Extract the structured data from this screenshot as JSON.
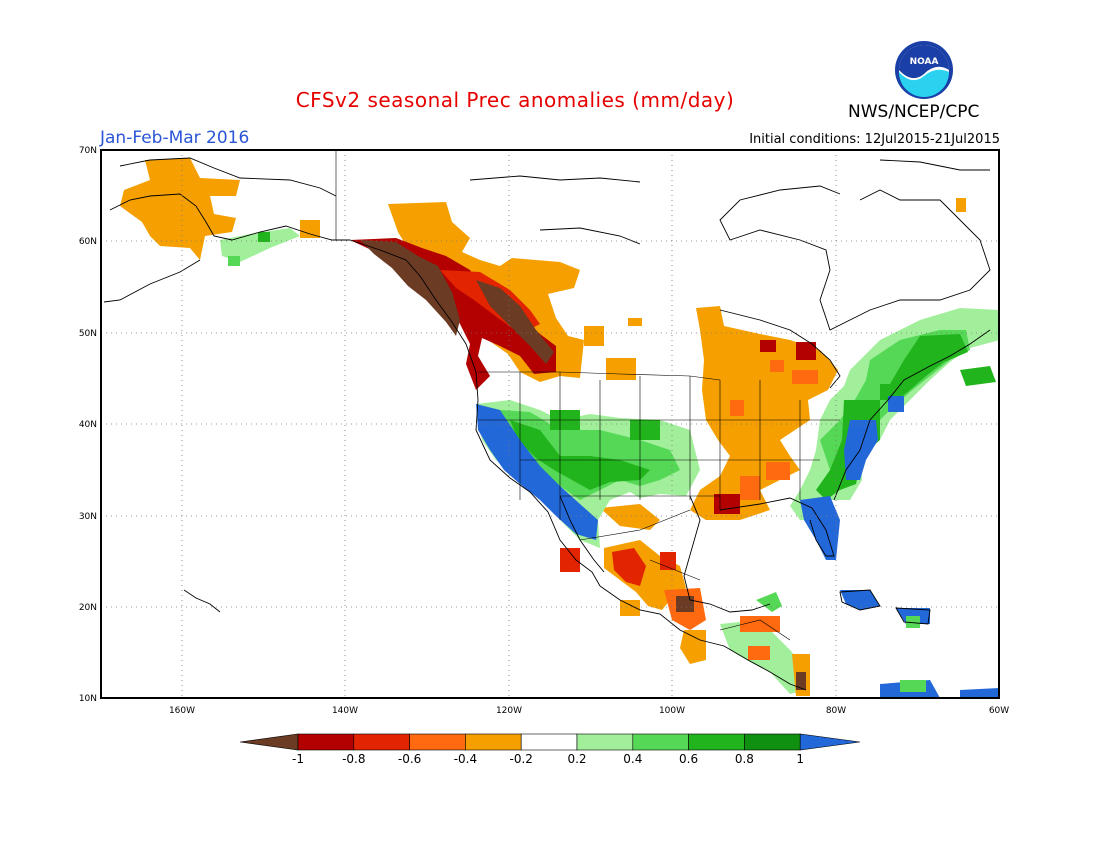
{
  "title": "CFSv2 seasonal Prec anomalies (mm/day)",
  "season": "Jan-Feb-Mar 2016",
  "initial_conditions": "Initial conditions: 12Jul2015-21Jul2015",
  "agency": "NWS/NCEP/CPC",
  "logo_text": "NOAA",
  "map": {
    "lon_range": [
      -172,
      -60
    ],
    "lat_range": [
      10,
      70
    ],
    "lat_labels": [
      "70N",
      "60N",
      "50N",
      "40N",
      "30N",
      "20N",
      "10N"
    ],
    "lon_labels": [
      "160W",
      "140W",
      "120W",
      "100W",
      "80W",
      "60W"
    ],
    "grid": "dotted"
  },
  "colorbar": {
    "labels": [
      "-1",
      "-0.8",
      "-0.6",
      "-0.4",
      "-0.2",
      "0.2",
      "0.4",
      "0.6",
      "0.8",
      "1"
    ],
    "colors": [
      "#6b3b24",
      "#b30000",
      "#e32400",
      "#ff6a10",
      "#f5a000",
      "#ffffff",
      "#a2ef9b",
      "#55d855",
      "#22b41c",
      "#109010",
      "#2368d8"
    ]
  }
}
